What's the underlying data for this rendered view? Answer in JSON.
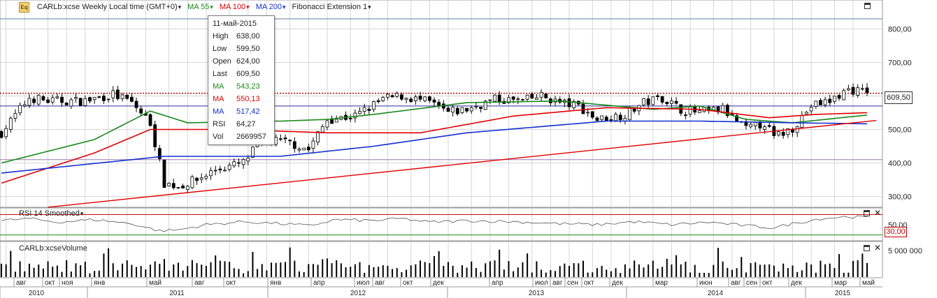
{
  "header": {
    "icon": "Eq",
    "symbol_label": "CARLb:xcse Weekly Local time (GMT+0)",
    "ma55_label": "MA 55",
    "ma100_label": "MA 100",
    "ma200_label": "MA 200",
    "fib_label": "Fibonacci Extension 1"
  },
  "colors": {
    "ma55": "#1a8a1a",
    "ma100": "#e00000",
    "ma200": "#1530d0",
    "rsi_line": "#555555",
    "rsi_level": "#c00000",
    "rsi_level_low": "#1a8a1a",
    "grid": "#d6d6d6"
  },
  "tooltip": {
    "date": "11-май-2015",
    "rows": [
      {
        "key": "High",
        "value": "638,00",
        "color": "#222222"
      },
      {
        "key": "Low",
        "value": "599,50",
        "color": "#222222"
      },
      {
        "key": "Open",
        "value": "624,00",
        "color": "#222222"
      },
      {
        "key": "Last",
        "value": "609,50",
        "color": "#222222"
      },
      {
        "key": "MA",
        "value": "543,23",
        "color": "#1a8a1a"
      },
      {
        "key": "MA",
        "value": "550,13",
        "color": "#e00000"
      },
      {
        "key": "MA",
        "value": "517,42",
        "color": "#1530d0"
      },
      {
        "key": "RSI",
        "value": "64,27",
        "color": "#222222"
      },
      {
        "key": "Vol",
        "value": "2669957",
        "color": "#222222"
      }
    ]
  },
  "price_label": "609,50",
  "rsi_panel": {
    "title": "RSI 14 Smoothed",
    "level_label": "30,00"
  },
  "volume_panel": {
    "title": "CARLb:xcseVolume"
  },
  "chart_data": {
    "type": "candlestick",
    "timeframe": "weekly",
    "price_axis": {
      "ticks": [
        300,
        400,
        500,
        600,
        700,
        800
      ],
      "tick_labels": [
        "300,00",
        "400,00",
        "500,00",
        "600,00",
        "700,00",
        "800,00"
      ],
      "range": [
        270,
        880
      ]
    },
    "rsi_axis": {
      "ticks": [
        50
      ],
      "tick_labels": [
        "50,00"
      ],
      "levels": [
        70,
        30
      ]
    },
    "volume_axis": {
      "ticks": [
        5000000
      ],
      "tick_labels": [
        "5 000 000"
      ]
    },
    "month_labels": [
      "авг",
      "окт",
      "ноя",
      "янв",
      "май",
      "авг",
      "окт",
      "янв",
      "апр",
      "июл",
      "авг",
      "окт",
      "дек",
      "апр",
      "июл",
      "авг",
      "сен",
      "окт",
      "дек",
      "мар",
      "июн",
      "авг",
      "сен",
      "окт",
      "дек",
      "мар",
      "май"
    ],
    "year_labels": [
      "2010",
      "2011",
      "2012",
      "2013",
      "2014",
      "2015"
    ],
    "fibonacci_levels": [
      830,
      608,
      570,
      410
    ],
    "close_anchors": [
      [
        0,
        490
      ],
      [
        6,
        595
      ],
      [
        10,
        585
      ],
      [
        18,
        585
      ],
      [
        24,
        605
      ],
      [
        28,
        580
      ],
      [
        32,
        520
      ],
      [
        35,
        340
      ],
      [
        38,
        330
      ],
      [
        42,
        350
      ],
      [
        46,
        380
      ],
      [
        52,
        400
      ],
      [
        56,
        470
      ],
      [
        62,
        460
      ],
      [
        66,
        440
      ],
      [
        70,
        530
      ],
      [
        76,
        540
      ],
      [
        82,
        590
      ],
      [
        86,
        600
      ],
      [
        92,
        580
      ],
      [
        96,
        550
      ],
      [
        100,
        560
      ],
      [
        106,
        590
      ],
      [
        112,
        585
      ],
      [
        116,
        600
      ],
      [
        120,
        580
      ],
      [
        124,
        570
      ],
      [
        128,
        530
      ],
      [
        134,
        545
      ],
      [
        138,
        580
      ],
      [
        142,
        595
      ],
      [
        146,
        560
      ],
      [
        150,
        550
      ],
      [
        155,
        560
      ],
      [
        160,
        500
      ],
      [
        164,
        520
      ],
      [
        166,
        475
      ],
      [
        170,
        505
      ],
      [
        174,
        570
      ],
      [
        178,
        585
      ],
      [
        182,
        620
      ],
      [
        186,
        609.5
      ]
    ],
    "ma55": [
      [
        0,
        400
      ],
      [
        20,
        470
      ],
      [
        32,
        555
      ],
      [
        40,
        520
      ],
      [
        60,
        525
      ],
      [
        70,
        530
      ],
      [
        80,
        545
      ],
      [
        100,
        580
      ],
      [
        120,
        585
      ],
      [
        140,
        560
      ],
      [
        150,
        570
      ],
      [
        160,
        530
      ],
      [
        170,
        520
      ],
      [
        186,
        543
      ]
    ],
    "ma100": [
      [
        0,
        340
      ],
      [
        20,
        430
      ],
      [
        32,
        500
      ],
      [
        50,
        500
      ],
      [
        70,
        490
      ],
      [
        90,
        490
      ],
      [
        110,
        540
      ],
      [
        130,
        565
      ],
      [
        150,
        560
      ],
      [
        165,
        535
      ],
      [
        175,
        545
      ],
      [
        186,
        550
      ]
    ],
    "ma200": [
      [
        0,
        370
      ],
      [
        35,
        420
      ],
      [
        60,
        420
      ],
      [
        80,
        450
      ],
      [
        100,
        490
      ],
      [
        130,
        525
      ],
      [
        150,
        525
      ],
      [
        170,
        520
      ],
      [
        186,
        517
      ]
    ],
    "trendline": [
      [
        10,
        268
      ],
      [
        188,
        527
      ]
    ],
    "rsi": [
      [
        0,
        58
      ],
      [
        6,
        62
      ],
      [
        12,
        55
      ],
      [
        20,
        60
      ],
      [
        28,
        52
      ],
      [
        34,
        38
      ],
      [
        38,
        40
      ],
      [
        44,
        50
      ],
      [
        52,
        56
      ],
      [
        60,
        52
      ],
      [
        66,
        48
      ],
      [
        72,
        60
      ],
      [
        80,
        58
      ],
      [
        86,
        62
      ],
      [
        92,
        55
      ],
      [
        100,
        58
      ],
      [
        110,
        56
      ],
      [
        120,
        52
      ],
      [
        128,
        50
      ],
      [
        136,
        56
      ],
      [
        144,
        50
      ],
      [
        152,
        55
      ],
      [
        160,
        48
      ],
      [
        166,
        44
      ],
      [
        170,
        52
      ],
      [
        176,
        62
      ],
      [
        182,
        66
      ],
      [
        186,
        64.27
      ]
    ],
    "candle_count": 187,
    "last_volume": 2669957
  }
}
